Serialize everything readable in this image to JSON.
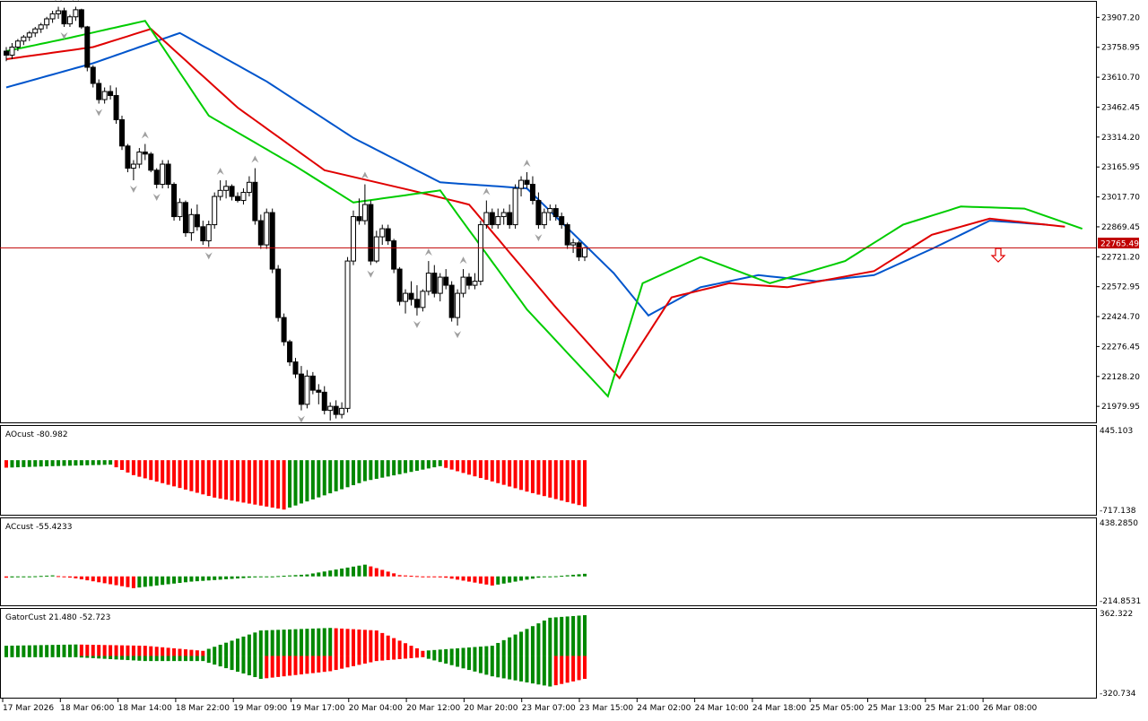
{
  "chart_data": [
    {
      "type": "candlestick",
      "pane": "main",
      "ylim": [
        21905,
        23980
      ],
      "price_ticks": [
        "23907.20",
        "23758.95",
        "23610.70",
        "23462.45",
        "23314.20",
        "23165.95",
        "23017.70",
        "22869.45",
        "22721.20",
        "22572.95",
        "22424.70",
        "22276.45",
        "22128.20",
        "21979.95"
      ],
      "last_price": 22765.49,
      "last_price_label": "22765.49",
      "grid": false,
      "ohlc_points": [
        [
          23740,
          23760,
          23690,
          23720
        ],
        [
          23720,
          23780,
          23700,
          23760
        ],
        [
          23760,
          23800,
          23740,
          23790
        ],
        [
          23790,
          23820,
          23770,
          23810
        ],
        [
          23810,
          23840,
          23790,
          23830
        ],
        [
          23830,
          23860,
          23810,
          23850
        ],
        [
          23850,
          23880,
          23830,
          23870
        ],
        [
          23870,
          23910,
          23850,
          23900
        ],
        [
          23900,
          23940,
          23880,
          23925
        ],
        [
          23925,
          23960,
          23900,
          23940
        ],
        [
          23940,
          23955,
          23860,
          23875
        ],
        [
          23875,
          23920,
          23860,
          23910
        ],
        [
          23910,
          23960,
          23890,
          23945
        ],
        [
          23945,
          23950,
          23850,
          23860
        ],
        [
          23860,
          23865,
          23640,
          23660
        ],
        [
          23660,
          23670,
          23560,
          23580
        ],
        [
          23580,
          23600,
          23480,
          23500
        ],
        [
          23500,
          23560,
          23480,
          23540
        ],
        [
          23540,
          23570,
          23500,
          23520
        ],
        [
          23520,
          23560,
          23380,
          23400
        ],
        [
          23400,
          23420,
          23250,
          23270
        ],
        [
          23270,
          23280,
          23140,
          23160
        ],
        [
          23160,
          23200,
          23100,
          23180
        ],
        [
          23180,
          23260,
          23160,
          23240
        ],
        [
          23240,
          23280,
          23200,
          23230
        ],
        [
          23230,
          23240,
          23140,
          23150
        ],
        [
          23150,
          23160,
          23060,
          23080
        ],
        [
          23080,
          23200,
          23060,
          23180
        ],
        [
          23180,
          23200,
          23060,
          23080
        ],
        [
          23080,
          23090,
          22900,
          22920
        ],
        [
          22920,
          23010,
          22900,
          22990
        ],
        [
          22990,
          23000,
          22820,
          22840
        ],
        [
          22840,
          22960,
          22800,
          22930
        ],
        [
          22930,
          22980,
          22850,
          22870
        ],
        [
          22870,
          22900,
          22780,
          22800
        ],
        [
          22800,
          22900,
          22770,
          22880
        ],
        [
          22880,
          23040,
          22860,
          23020
        ],
        [
          23020,
          23100,
          23000,
          23050
        ],
        [
          23050,
          23100,
          23010,
          23070
        ],
        [
          23070,
          23080,
          23000,
          23020
        ],
        [
          23020,
          23040,
          22990,
          23000
        ],
        [
          23000,
          23060,
          22980,
          23040
        ],
        [
          23040,
          23120,
          23020,
          23090
        ],
        [
          23090,
          23160,
          22880,
          22900
        ],
        [
          22900,
          22930,
          22760,
          22780
        ],
        [
          22780,
          22960,
          22760,
          22940
        ],
        [
          22940,
          22960,
          22640,
          22660
        ],
        [
          22660,
          22680,
          22400,
          22420
        ],
        [
          22420,
          22440,
          22280,
          22300
        ],
        [
          22300,
          22310,
          22180,
          22200
        ],
        [
          22200,
          22220,
          22120,
          22140
        ],
        [
          22140,
          22180,
          21960,
          21990
        ],
        [
          21990,
          22160,
          21970,
          22130
        ],
        [
          22130,
          22150,
          22040,
          22060
        ],
        [
          22060,
          22090,
          21990,
          22050
        ],
        [
          22050,
          22080,
          21940,
          21960
        ],
        [
          21960,
          22000,
          21910,
          21980
        ],
        [
          21980,
          22010,
          21920,
          21940
        ],
        [
          21940,
          22000,
          21920,
          21970
        ],
        [
          21970,
          22720,
          21950,
          22700
        ],
        [
          22700,
          22950,
          22680,
          22920
        ],
        [
          22920,
          23010,
          22880,
          22900
        ],
        [
          22900,
          23080,
          22880,
          22980
        ],
        [
          22980,
          23000,
          22680,
          22700
        ],
        [
          22700,
          22850,
          22690,
          22820
        ],
        [
          22820,
          22880,
          22780,
          22860
        ],
        [
          22860,
          22880,
          22780,
          22800
        ],
        [
          22800,
          22810,
          22640,
          22660
        ],
        [
          22660,
          22670,
          22480,
          22500
        ],
        [
          22500,
          22560,
          22440,
          22540
        ],
        [
          22540,
          22600,
          22480,
          22510
        ],
        [
          22510,
          22580,
          22430,
          22470
        ],
        [
          22470,
          22560,
          22450,
          22550
        ],
        [
          22550,
          22700,
          22530,
          22640
        ],
        [
          22640,
          22680,
          22520,
          22540
        ],
        [
          22540,
          22640,
          22500,
          22620
        ],
        [
          22620,
          22660,
          22560,
          22580
        ],
        [
          22580,
          22600,
          22400,
          22420
        ],
        [
          22420,
          22560,
          22380,
          22540
        ],
        [
          22540,
          22660,
          22520,
          22620
        ],
        [
          22620,
          22640,
          22560,
          22580
        ],
        [
          22580,
          22640,
          22560,
          22600
        ],
        [
          22600,
          22900,
          22580,
          22880
        ],
        [
          22880,
          23000,
          22860,
          22940
        ],
        [
          22940,
          22960,
          22860,
          22880
        ],
        [
          22880,
          22960,
          22860,
          22920
        ],
        [
          22920,
          22960,
          22880,
          22940
        ],
        [
          22940,
          22980,
          22860,
          22880
        ],
        [
          22880,
          23080,
          22860,
          23060
        ],
        [
          23060,
          23120,
          23020,
          23100
        ],
        [
          23100,
          23140,
          23060,
          23080
        ],
        [
          23080,
          23120,
          22980,
          23000
        ],
        [
          23000,
          23040,
          22860,
          22880
        ],
        [
          22880,
          22960,
          22860,
          22940
        ],
        [
          22940,
          22980,
          22900,
          22960
        ],
        [
          22960,
          22980,
          22900,
          22920
        ],
        [
          22920,
          22940,
          22860,
          22880
        ],
        [
          22880,
          22890,
          22760,
          22780
        ],
        [
          22780,
          22810,
          22740,
          22790
        ],
        [
          22790,
          22800,
          22700,
          22720
        ],
        [
          22720,
          22770,
          22700,
          22765
        ]
      ],
      "moving_averages": [
        {
          "color": "#0055cc",
          "points": [
            [
              0,
              23560
            ],
            [
              15,
              23680
            ],
            [
              30,
              23830
            ],
            [
              45,
              23590
            ],
            [
              60,
              23310
            ],
            [
              75,
              23090
            ],
            [
              90,
              23060
            ],
            [
              105,
              22640
            ],
            [
              111,
              22430
            ],
            [
              120,
              22570
            ],
            [
              130,
              22630
            ],
            [
              140,
              22600
            ],
            [
              150,
              22630
            ],
            [
              160,
              22760
            ],
            [
              170,
              22900
            ],
            [
              180,
              22880
            ]
          ]
        },
        {
          "color": "#e00000",
          "points": [
            [
              0,
              23700
            ],
            [
              15,
              23760
            ],
            [
              25,
              23850
            ],
            [
              40,
              23460
            ],
            [
              55,
              23150
            ],
            [
              70,
              23050
            ],
            [
              80,
              22980
            ],
            [
              95,
              22470
            ],
            [
              106,
              22120
            ],
            [
              115,
              22520
            ],
            [
              125,
              22590
            ],
            [
              135,
              22570
            ],
            [
              150,
              22650
            ],
            [
              160,
              22830
            ],
            [
              170,
              22910
            ],
            [
              183,
              22870
            ]
          ]
        },
        {
          "color": "#00cc00",
          "points": [
            [
              0,
              23740
            ],
            [
              10,
              23800
            ],
            [
              24,
              23890
            ],
            [
              35,
              23420
            ],
            [
              50,
              23170
            ],
            [
              60,
              22990
            ],
            [
              75,
              23050
            ],
            [
              90,
              22460
            ],
            [
              104,
              22030
            ],
            [
              110,
              22590
            ],
            [
              120,
              22720
            ],
            [
              132,
              22590
            ],
            [
              145,
              22700
            ],
            [
              155,
              22880
            ],
            [
              165,
              22970
            ],
            [
              176,
              22960
            ],
            [
              186,
              22860
            ]
          ]
        }
      ],
      "x_tick_labels": [
        "17 Mar 2026",
        "18 Mar 06:00",
        "18 Mar 14:00",
        "18 Mar 22:00",
        "19 Mar 09:00",
        "19 Mar 17:00",
        "20 Mar 04:00",
        "20 Mar 12:00",
        "20 Mar 20:00",
        "23 Mar 07:00",
        "23 Mar 15:00",
        "24 Mar 02:00",
        "24 Mar 10:00",
        "24 Mar 18:00",
        "25 Mar 05:00",
        "25 Mar 13:00",
        "25 Mar 21:00",
        "26 Mar 08:00"
      ]
    },
    {
      "type": "bar",
      "pane": "AOcust",
      "label": "AOcust -80.982",
      "ylim": [
        -717.138,
        445.103
      ],
      "ytick_labels": [
        "445.103",
        "-717.138"
      ],
      "colors": {
        "up": "#008800",
        "down": "#ff0000"
      },
      "segments": [
        [
          0,
          -100
        ],
        [
          8,
          -80
        ],
        [
          18,
          -60
        ],
        [
          22,
          -200
        ],
        [
          36,
          -500
        ],
        [
          48,
          -660
        ],
        [
          62,
          -280
        ],
        [
          75,
          -80
        ],
        [
          90,
          -420
        ],
        [
          100,
          -620
        ],
        [
          105,
          -580
        ],
        [
          108,
          300
        ],
        [
          114,
          260
        ],
        [
          125,
          -120
        ],
        [
          140,
          -80
        ],
        [
          150,
          120
        ],
        [
          160,
          180
        ],
        [
          168,
          -80
        ],
        [
          176,
          -100
        ]
      ]
    },
    {
      "type": "bar",
      "pane": "ACcust",
      "label": "ACcust -55.4233",
      "ylim": [
        -214.8531,
        438.285
      ],
      "ytick_labels": [
        "438.2850",
        "-214.8531"
      ],
      "colors": {
        "up": "#008800",
        "down": "#ff0000"
      },
      "segments": [
        [
          0,
          -10
        ],
        [
          8,
          8
        ],
        [
          12,
          -15
        ],
        [
          22,
          -90
        ],
        [
          32,
          -40
        ],
        [
          42,
          -10
        ],
        [
          52,
          15
        ],
        [
          62,
          90
        ],
        [
          68,
          10
        ],
        [
          76,
          -10
        ],
        [
          84,
          -70
        ],
        [
          92,
          -10
        ],
        [
          100,
          20
        ],
        [
          104,
          120
        ],
        [
          108,
          360
        ],
        [
          112,
          40
        ],
        [
          116,
          -20
        ],
        [
          124,
          15
        ],
        [
          130,
          -5
        ],
        [
          140,
          10
        ],
        [
          148,
          40
        ],
        [
          156,
          15
        ],
        [
          164,
          -10
        ],
        [
          176,
          -20
        ]
      ]
    },
    {
      "type": "bar",
      "pane": "GatorCust",
      "label": "GatorCust 21.480 -52.723",
      "ylim": [
        -320.734,
        362.322
      ],
      "ytick_labels": [
        "362.322",
        "-320.734"
      ],
      "colors": {
        "up": "#008800",
        "down": "#ff0000"
      },
      "upper_segments": [
        [
          0,
          80
        ],
        [
          12,
          90
        ],
        [
          24,
          80
        ],
        [
          34,
          40
        ],
        [
          44,
          200
        ],
        [
          56,
          220
        ],
        [
          64,
          200
        ],
        [
          72,
          40
        ],
        [
          84,
          80
        ],
        [
          94,
          300
        ],
        [
          100,
          320
        ],
        [
          108,
          20
        ],
        [
          118,
          40
        ],
        [
          126,
          10
        ],
        [
          140,
          30
        ],
        [
          150,
          100
        ],
        [
          160,
          120
        ],
        [
          168,
          80
        ],
        [
          176,
          20
        ]
      ],
      "lower_segments": [
        [
          0,
          -10
        ],
        [
          12,
          -10
        ],
        [
          24,
          -40
        ],
        [
          34,
          -40
        ],
        [
          44,
          -180
        ],
        [
          56,
          -120
        ],
        [
          64,
          -40
        ],
        [
          72,
          -10
        ],
        [
          84,
          -160
        ],
        [
          94,
          -240
        ],
        [
          100,
          -180
        ],
        [
          108,
          -220
        ],
        [
          118,
          -120
        ],
        [
          126,
          -20
        ],
        [
          140,
          -10
        ],
        [
          150,
          -140
        ],
        [
          160,
          -40
        ],
        [
          168,
          -20
        ],
        [
          176,
          -10
        ]
      ]
    }
  ]
}
